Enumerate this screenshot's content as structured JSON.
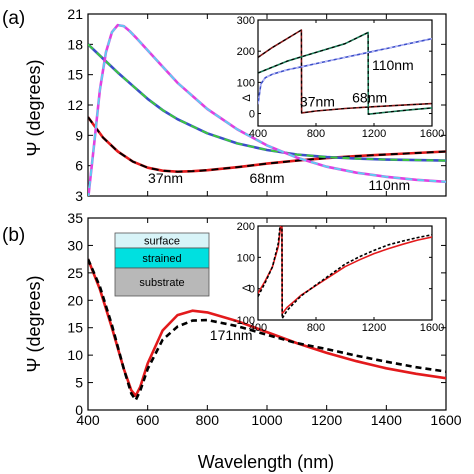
{
  "chart_data": [
    {
      "panel": "(a)",
      "type": "line",
      "xlim": [
        400,
        1600
      ],
      "ylim": [
        3,
        21
      ],
      "xticks": [
        400,
        600,
        800,
        1000,
        1200,
        1400,
        1600
      ],
      "yticks": [
        3,
        6,
        9,
        12,
        15,
        18,
        21
      ],
      "ylabel": "Ψ (degrees)",
      "annotations": [
        {
          "text": "37nm",
          "x": 660,
          "y": 4.3
        },
        {
          "text": "68nm",
          "x": 1000,
          "y": 4.3
        },
        {
          "text": "110nm",
          "x": 1410,
          "y": 3.6
        }
      ],
      "series": [
        {
          "color": "#e31a1c",
          "overlay": "#000000",
          "x": [
            400,
            450,
            500,
            550,
            600,
            650,
            700,
            750,
            800,
            900,
            1000,
            1100,
            1200,
            1300,
            1400,
            1500,
            1600
          ],
          "y": [
            10.8,
            8.8,
            7.4,
            6.4,
            5.8,
            5.5,
            5.4,
            5.45,
            5.55,
            5.85,
            6.2,
            6.5,
            6.75,
            6.95,
            7.1,
            7.25,
            7.4
          ]
        },
        {
          "color": "#3b4ec8",
          "overlay": "#3cc93c",
          "x": [
            400,
            450,
            500,
            550,
            600,
            650,
            700,
            800,
            900,
            1000,
            1100,
            1200,
            1300,
            1400,
            1500,
            1600
          ],
          "y": [
            18.0,
            16.6,
            15.2,
            13.9,
            12.6,
            11.5,
            10.6,
            9.2,
            8.2,
            7.55,
            7.1,
            6.85,
            6.7,
            6.6,
            6.55,
            6.5
          ]
        },
        {
          "color": "#e040e0",
          "overlay": "#5cd0f0",
          "x": [
            400,
            420,
            440,
            460,
            480,
            500,
            520,
            540,
            560,
            600,
            650,
            700,
            800,
            900,
            1000,
            1100,
            1200,
            1300,
            1400,
            1500,
            1600
          ],
          "y": [
            2.6,
            8.0,
            13.5,
            17.2,
            19.2,
            19.9,
            19.8,
            19.3,
            18.7,
            17.4,
            15.8,
            14.2,
            11.6,
            9.6,
            8.0,
            6.8,
            5.9,
            5.3,
            4.9,
            4.6,
            4.4
          ]
        }
      ],
      "inset": {
        "type": "line",
        "xlim": [
          400,
          1600
        ],
        "ylim": [
          -40,
          300
        ],
        "xticks": [
          400,
          800,
          1200,
          1600
        ],
        "yticks": [
          0,
          100,
          200,
          300
        ],
        "ylabel": "Δ",
        "annotations": [
          {
            "text": "110nm",
            "x": 1330,
            "y": 140
          },
          {
            "text": "37nm",
            "x": 810,
            "y": 22
          },
          {
            "text": "68nm",
            "x": 1170,
            "y": 35
          }
        ],
        "series": [
          {
            "color": "#8b1a1a",
            "overlay": "#000000",
            "x": [
              400,
              500,
              600,
              699,
              701,
              800,
              1000,
              1200,
              1400,
              1600
            ],
            "y": [
              180,
              212,
              240,
              268,
              2,
              8,
              16,
              22,
              27,
              32
            ]
          },
          {
            "color": "#1a7a55",
            "overlay": "#000000",
            "x": [
              400,
              600,
              800,
              1000,
              1159,
              1161,
              1300,
              1450,
              1600
            ],
            "y": [
              130,
              168,
              196,
              224,
              260,
              -2,
              5,
              12,
              18
            ]
          },
          {
            "color": "#3b4ec8",
            "overlay": "#c0c0ff",
            "x": [
              400,
              420,
              450,
              500,
              600,
              700,
              800,
              900,
              1000,
              1100,
              1200,
              1300,
              1400,
              1500,
              1600
            ],
            "y": [
              30,
              95,
              115,
              126,
              140,
              150,
              160,
              170,
              180,
              190,
              200,
              210,
              220,
              230,
              240
            ]
          }
        ]
      }
    },
    {
      "panel": "(b)",
      "type": "line",
      "xlim": [
        400,
        1600
      ],
      "ylim": [
        0,
        35
      ],
      "xticks": [
        400,
        600,
        800,
        1000,
        1200,
        1400,
        1600
      ],
      "yticks": [
        0,
        5,
        10,
        15,
        20,
        25,
        30,
        35
      ],
      "xlabel": "Wavelength (nm)",
      "ylabel": "Ψ (degrees)",
      "annotations": [
        {
          "text": "171nm",
          "x": 880,
          "y": 12.8
        }
      ],
      "layers": [
        "surface",
        "strained",
        "substrate"
      ],
      "layer_colors": [
        "#d8f4f8",
        "#00e0e0",
        "#b8b8b8"
      ],
      "series": [
        {
          "color": "#e31a1c",
          "style": "solid",
          "x": [
            400,
            440,
            480,
            520,
            545,
            560,
            575,
            600,
            650,
            700,
            750,
            800,
            900,
            1000,
            1100,
            1200,
            1300,
            1400,
            1500,
            1600
          ],
          "y": [
            27.5,
            22.0,
            15.0,
            7.5,
            3.6,
            2.6,
            4.2,
            8.5,
            14.5,
            17.3,
            18.1,
            17.8,
            16.2,
            14.2,
            12.2,
            10.4,
            8.9,
            7.6,
            6.6,
            5.8
          ]
        },
        {
          "color": "#000000",
          "style": "dashed",
          "x": [
            400,
            440,
            480,
            520,
            545,
            560,
            575,
            600,
            650,
            700,
            750,
            800,
            900,
            1000,
            1100,
            1200,
            1300,
            1400,
            1500,
            1600
          ],
          "y": [
            27.5,
            22.5,
            15.5,
            7.5,
            3.0,
            1.8,
            3.5,
            7.5,
            12.8,
            15.2,
            16.3,
            16.4,
            15.3,
            13.7,
            12.2,
            11.1,
            9.9,
            8.8,
            7.8,
            7.0
          ]
        }
      ],
      "inset": {
        "type": "line",
        "xlim": [
          400,
          1600
        ],
        "ylim": [
          -100,
          200
        ],
        "xticks": [
          400,
          800,
          1200,
          1600
        ],
        "yticks": [
          -100,
          0,
          100,
          200
        ],
        "ylabel": "Δ",
        "series": [
          {
            "color": "#e31a1c",
            "style": "solid",
            "x": [
              400,
              450,
              500,
              540,
              565,
              567,
              580,
              600,
              650,
              700,
              800,
              900,
              1000,
              1100,
              1200,
              1300,
              1400,
              1500,
              1600
            ],
            "y": [
              -15,
              25,
              70,
              135,
              235,
              -80,
              -72,
              -60,
              -40,
              -20,
              10,
              40,
              70,
              92,
              112,
              128,
              142,
              155,
              165
            ]
          },
          {
            "color": "#000000",
            "style": "dashed",
            "x": [
              400,
              450,
              500,
              540,
              565,
              567,
              580,
              600,
              650,
              700,
              800,
              900,
              1000,
              1100,
              1200,
              1300,
              1400,
              1500,
              1600
            ],
            "y": [
              -25,
              20,
              70,
              145,
              260,
              -95,
              -85,
              -70,
              -45,
              -22,
              12,
              45,
              78,
              102,
              122,
              140,
              152,
              163,
              172
            ]
          }
        ]
      }
    }
  ]
}
